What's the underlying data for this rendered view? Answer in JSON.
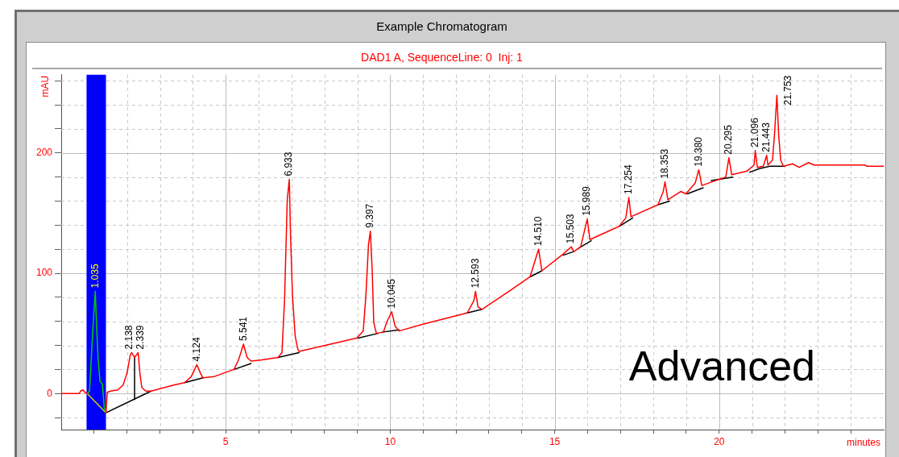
{
  "chart_data": {
    "type": "line",
    "title": "Example Chromatogram",
    "subtitle": "DAD1 A, SequenceLine: 0  Inj: 1",
    "xlabel": "minutes",
    "ylabel": "mAU",
    "xlim": [
      0,
      25
    ],
    "ylim": [
      -30,
      265
    ],
    "xticks": [
      {
        "value": 1,
        "label": null
      },
      {
        "value": 2,
        "label": null
      },
      {
        "value": 3,
        "label": null
      },
      {
        "value": 4,
        "label": null
      },
      5,
      {
        "value": 6,
        "label": null
      },
      {
        "value": 7,
        "label": null
      },
      {
        "value": 8,
        "label": null
      },
      {
        "value": 9,
        "label": null
      },
      10,
      {
        "value": 11,
        "label": null
      },
      {
        "value": 12,
        "label": null
      },
      {
        "value": 13,
        "label": null
      },
      {
        "value": 14,
        "label": null
      },
      15,
      {
        "value": 16,
        "label": null
      },
      {
        "value": 17,
        "label": null
      },
      {
        "value": 18,
        "label": null
      },
      {
        "value": 19,
        "label": null
      },
      20,
      {
        "value": 21,
        "label": null
      },
      {
        "value": 22,
        "label": null
      },
      {
        "value": 23,
        "label": null
      },
      {
        "value": 24,
        "label": null
      }
    ],
    "yticks": [
      {
        "value": -20,
        "label": null
      },
      0,
      {
        "value": 20,
        "label": null
      },
      {
        "value": 40,
        "label": null
      },
      {
        "value": 60,
        "label": null
      },
      {
        "value": 80,
        "label": null
      },
      100,
      {
        "value": 120,
        "label": null
      },
      {
        "value": 140,
        "label": null
      },
      {
        "value": 160,
        "label": null
      },
      {
        "value": 180,
        "label": null
      },
      200,
      {
        "value": 220,
        "label": null
      },
      {
        "value": 240,
        "label": null
      },
      {
        "value": 260,
        "label": null
      }
    ],
    "grid": true,
    "legend": false,
    "marker": "none",
    "line_style": "solid",
    "series": [
      {
        "color": "#ff0000",
        "x": [
          0,
          0.55,
          0.59,
          0.66,
          0.72,
          0.79,
          1.0,
          1.36,
          1.4,
          1.5,
          1.72,
          1.88,
          2.0,
          2.1,
          2.138,
          2.23,
          2.339,
          2.39,
          2.45,
          2.57,
          2.73,
          3.42,
          3.75,
          3.95,
          4.124,
          4.23,
          4.31,
          4.64,
          5.04,
          5.25,
          5.39,
          5.541,
          5.65,
          5.77,
          6.1,
          6.59,
          6.71,
          6.79,
          6.87,
          6.933,
          6.97,
          7.03,
          7.11,
          7.19,
          7.23,
          8.98,
          9.18,
          9.26,
          9.34,
          9.397,
          9.45,
          9.5,
          9.58,
          9.79,
          9.92,
          10.045,
          10.15,
          10.27,
          11.04,
          12.34,
          12.54,
          12.593,
          12.67,
          12.79,
          13.72,
          14.25,
          14.51,
          14.61,
          15.26,
          15.503,
          15.58,
          15.79,
          15.989,
          16.07,
          16.96,
          17.16,
          17.254,
          17.32,
          18.14,
          18.3,
          18.353,
          18.44,
          18.83,
          18.99,
          19.27,
          19.38,
          19.47,
          20.2,
          20.295,
          20.38,
          20.85,
          21.06,
          21.096,
          21.16,
          21.34,
          21.443,
          21.48,
          21.62,
          21.68,
          21.753,
          21.81,
          21.87,
          21.95,
          22.23,
          22.43,
          22.72,
          22.88,
          24.42,
          24.5,
          25
        ],
        "values": [
          0,
          0,
          2,
          3,
          1,
          0,
          null,
          -16,
          1,
          2,
          3,
          7,
          17,
          32,
          34,
          30,
          34,
          17,
          5,
          2,
          2,
          7,
          9,
          14,
          24,
          17,
          13,
          14,
          18,
          20,
          28,
          41,
          30,
          27,
          28,
          30,
          34,
          79,
          161,
          178,
          132,
          81,
          48,
          37,
          35,
          46,
          52,
          81,
          124,
          135,
          104,
          59,
          50,
          51,
          61,
          68,
          56,
          52,
          58,
          67,
          77,
          85,
          72,
          70,
          87,
          97,
          120,
          102,
          116,
          122,
          118,
          122,
          145,
          128,
          139,
          146,
          163,
          147,
          157,
          168,
          176,
          161,
          168,
          166,
          175,
          186,
          173,
          180,
          196,
          182,
          185,
          190,
          202,
          188,
          189,
          198,
          190,
          194,
          215,
          248,
          214,
          194,
          189,
          191,
          188,
          192,
          190,
          190,
          189,
          189
        ]
      },
      {
        "color": "#00cc00",
        "x": [
          0.79,
          0.86,
          0.9,
          0.96,
          1.035,
          1.08,
          1.12,
          1.18,
          1.25,
          1.31,
          1.36
        ],
        "values": [
          0,
          2,
          22,
          53,
          85,
          53,
          29,
          10,
          8,
          -12,
          -16
        ]
      },
      {
        "color": "#000000",
        "x": [
          1.36,
          2.73,
          3.2,
          3.75,
          4.31,
          4.8,
          5.25,
          5.77,
          6.2,
          6.59,
          7.23,
          8.0,
          9.02,
          9.63,
          9.69,
          9.75,
          10.27,
          11.0,
          12.34,
          12.79,
          13.5,
          14.25,
          14.61,
          15.0,
          15.26,
          15.58,
          15.66,
          15.74,
          16.11,
          16.5,
          16.96,
          17.37,
          17.8,
          18.14,
          18.49,
          18.8,
          19.03,
          19.51,
          19.63,
          19.76,
          20.41,
          20.7,
          20.93,
          21.22,
          21.54,
          21.99
        ],
        "values": [
          -16,
          2,
          null,
          9,
          13,
          null,
          20,
          25,
          null,
          30,
          34,
          null,
          46,
          50,
          null,
          51,
          53,
          null,
          67,
          70,
          null,
          97,
          102,
          null,
          115,
          118,
          null,
          121,
          127,
          null,
          139,
          146,
          null,
          157,
          160,
          null,
          166,
          171,
          null,
          177,
          180,
          null,
          184,
          187,
          189,
          189
        ]
      },
      {
        "color": "#cccc00",
        "x": [
          0.79,
          1.36
        ],
        "values": [
          0,
          -16
        ]
      },
      {
        "color": "#000000",
        "x": [
          2.23,
          2.23
        ],
        "values": [
          30,
          -5
        ]
      }
    ],
    "bands": [
      {
        "axis": "x",
        "from": 0.77,
        "to": 1.36,
        "color": "#0000ff"
      }
    ],
    "annotations": [
      {
        "text": "1.035",
        "x": 1.035,
        "y": 85
      },
      {
        "text": "2.138",
        "x": 2.138,
        "y": 34
      },
      {
        "text": "2.339",
        "x": 2.339,
        "y": 34
      },
      {
        "text": "4.124",
        "x": 4.124,
        "y": 24
      },
      {
        "text": "5.541",
        "x": 5.541,
        "y": 41
      },
      {
        "text": "6.933",
        "x": 6.933,
        "y": 178
      },
      {
        "text": "9.397",
        "x": 9.397,
        "y": 135
      },
      {
        "text": "10.045",
        "x": 10.045,
        "y": 68
      },
      {
        "text": "12.593",
        "x": 12.593,
        "y": 85
      },
      {
        "text": "14.510",
        "x": 14.51,
        "y": 120
      },
      {
        "text": "15.503",
        "x": 15.503,
        "y": 122
      },
      {
        "text": "15.989",
        "x": 15.989,
        "y": 145
      },
      {
        "text": "17.254",
        "x": 17.254,
        "y": 163
      },
      {
        "text": "18.353",
        "x": 18.353,
        "y": 176
      },
      {
        "text": "19.380",
        "x": 19.38,
        "y": 186
      },
      {
        "text": "20.295",
        "x": 20.295,
        "y": 196
      },
      {
        "text": "21.096",
        "x": 21.096,
        "y": 202
      },
      {
        "text": "21.443",
        "x": 21.443,
        "y": 198
      },
      {
        "text": "21.753",
        "x": 21.753,
        "y": 248
      },
      "Advanced"
    ]
  }
}
